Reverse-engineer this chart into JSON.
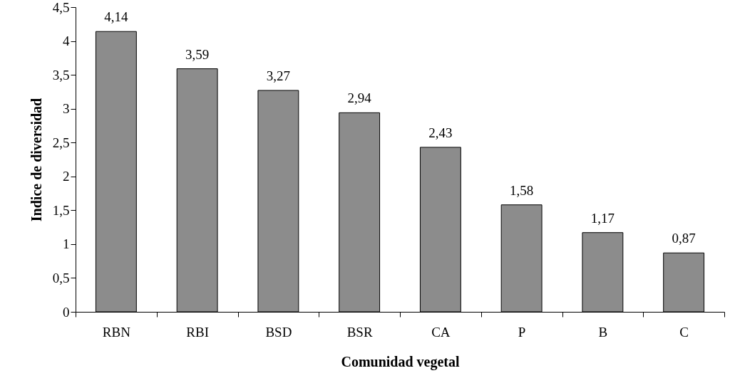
{
  "chart_data": {
    "type": "bar",
    "xlabel": "Comunidad vegetal",
    "ylabel": "Indice de diversidad",
    "categories": [
      "RBN",
      "RBI",
      "BSD",
      "BSR",
      "CA",
      "P",
      "B",
      "C"
    ],
    "values": [
      4.14,
      3.59,
      3.27,
      2.94,
      2.43,
      1.58,
      1.17,
      0.87
    ],
    "value_labels": [
      "4,14",
      "3,59",
      "3,27",
      "2,94",
      "2,43",
      "1,58",
      "1,17",
      "0,87"
    ],
    "color": "#8c8c8c",
    "ylim": [
      0,
      4.5
    ],
    "yticks": [
      0,
      {
        "value": 0.5,
        "label": "0,5"
      },
      1,
      {
        "value": 1.5,
        "label": "1,5"
      },
      2,
      {
        "value": 2.5,
        "label": "2,5"
      },
      3,
      {
        "value": 3.5,
        "label": "3,5"
      },
      4,
      {
        "value": 4.5,
        "label": "4,5"
      }
    ],
    "grid": false
  }
}
